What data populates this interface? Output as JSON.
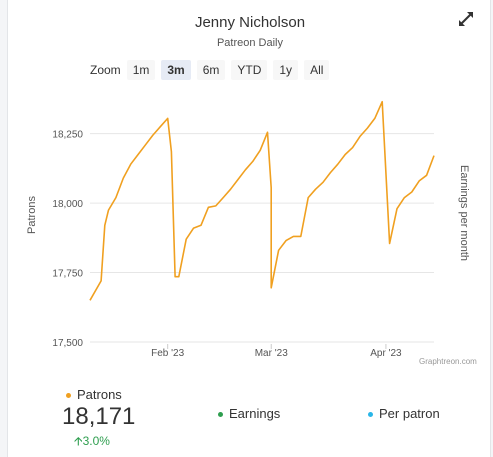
{
  "header": {
    "title": "Jenny Nicholson",
    "subtitle": "Patreon Daily"
  },
  "zoom": {
    "label": "Zoom",
    "buttons": [
      "1m",
      "3m",
      "6m",
      "YTD",
      "1y",
      "All"
    ],
    "active": "3m"
  },
  "credit": "Graphtreon.com",
  "legend": {
    "patrons": "Patrons",
    "earnings": "Earnings",
    "per_patron": "Per patron"
  },
  "summary": {
    "value": "18,171",
    "change": "3.0%",
    "change_icon": "arrow-up-icon"
  },
  "colors": {
    "patrons": "#f0a020",
    "earnings": "#2e9e4f",
    "per_patron": "#29b6e8",
    "grid": "#e6e6e6",
    "change": "#2e9e4f"
  },
  "chart_data": {
    "type": "line",
    "title": "",
    "xlabel": "",
    "ylabel": "Patrons",
    "y2label": "Earnings per month",
    "ylim": [
      17500,
      18400
    ],
    "yticks": [
      17500,
      17750,
      18000,
      18250
    ],
    "ytick_labels": [
      "17,500",
      "17,750",
      "18,000",
      "18,250"
    ],
    "xlim": [
      "2023-01-11",
      "2023-04-14"
    ],
    "xticks": [
      "2023-02-01",
      "2023-03-01",
      "2023-04-01"
    ],
    "xtick_labels": [
      "Feb '23",
      "Mar '23",
      "Apr '23"
    ],
    "grid": true,
    "series": [
      {
        "name": "Patrons",
        "x": [
          "2023-01-11",
          "2023-01-14",
          "2023-01-15",
          "2023-01-16",
          "2023-01-18",
          "2023-01-20",
          "2023-01-22",
          "2023-01-24",
          "2023-01-26",
          "2023-01-28",
          "2023-01-30",
          "2023-02-01",
          "2023-02-02",
          "2023-02-03",
          "2023-02-04",
          "2023-02-04",
          "2023-02-06",
          "2023-02-08",
          "2023-02-10",
          "2023-02-12",
          "2023-02-14",
          "2023-02-16",
          "2023-02-18",
          "2023-02-20",
          "2023-02-22",
          "2023-02-24",
          "2023-02-26",
          "2023-02-28",
          "2023-03-01",
          "2023-03-01",
          "2023-03-03",
          "2023-03-05",
          "2023-03-07",
          "2023-03-09",
          "2023-03-11",
          "2023-03-13",
          "2023-03-15",
          "2023-03-17",
          "2023-03-19",
          "2023-03-21",
          "2023-03-23",
          "2023-03-25",
          "2023-03-27",
          "2023-03-29",
          "2023-03-31",
          "2023-03-31",
          "2023-04-02",
          "2023-04-04",
          "2023-04-06",
          "2023-04-08",
          "2023-04-10",
          "2023-04-12",
          "2023-04-14"
        ],
        "y": [
          17650,
          17720,
          17920,
          17975,
          18020,
          18090,
          18140,
          18175,
          18210,
          18245,
          18275,
          18305,
          18185,
          17735,
          17735,
          17735,
          17870,
          17910,
          17920,
          17985,
          17990,
          18020,
          18050,
          18085,
          18120,
          18150,
          18190,
          18255,
          18055,
          17695,
          17830,
          17865,
          17880,
          17880,
          18020,
          18050,
          18075,
          18110,
          18140,
          18175,
          18200,
          18240,
          18270,
          18305,
          18365,
          18365,
          17855,
          17980,
          18020,
          18040,
          18080,
          18100,
          18171
        ]
      }
    ]
  }
}
